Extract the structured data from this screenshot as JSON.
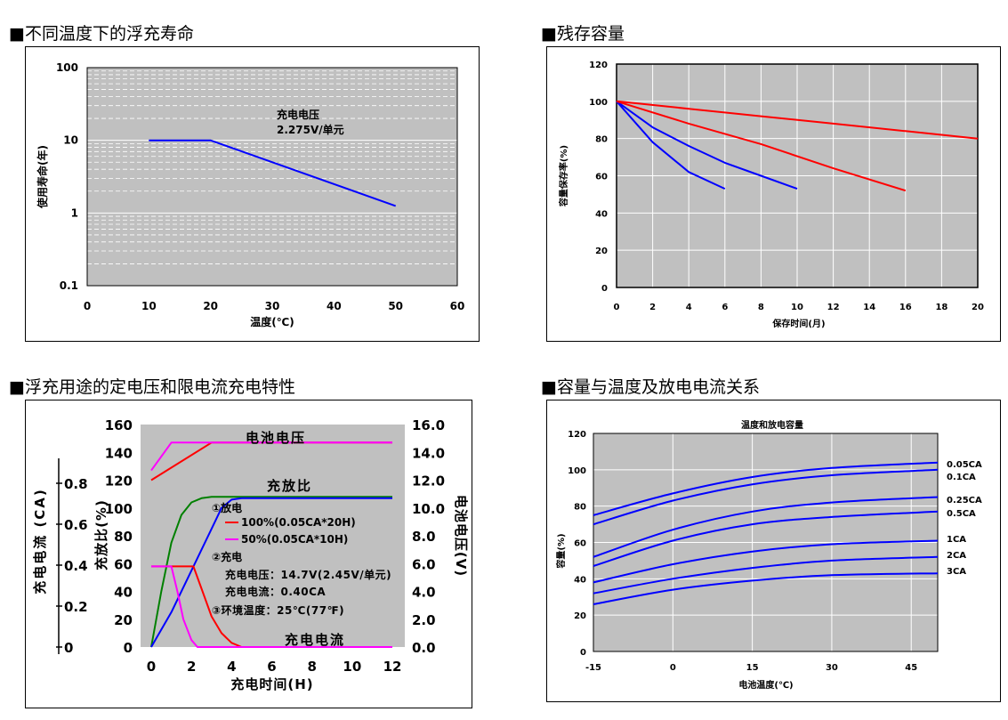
{
  "colors": {
    "plot_bg": "#c0c0c0",
    "grid": "#ffffff",
    "blue": "#0000ff",
    "red": "#ff0000",
    "magenta": "#ff00ff",
    "green": "#008000"
  },
  "sections": {
    "s1_title": "■不同温度下的浮充寿命",
    "s2_title": "■残存容量",
    "s3_title": "■浮充用途的定电压和限电流充电特性",
    "s4_title": "■容量与温度及放电电流关系"
  },
  "chart_data": [
    {
      "type": "line",
      "title": "",
      "xlabel": "温度(℃)",
      "ylabel": "使用寿命(年)",
      "yscale": "log",
      "xlim": [
        0,
        60
      ],
      "ylim": [
        0.1,
        100
      ],
      "xticks": [
        "0",
        "10",
        "20",
        "30",
        "40",
        "50",
        "60"
      ],
      "yticks": [
        "0.1",
        "1",
        "10",
        "100"
      ],
      "annotation": [
        "充电电压",
        "2.275V/单元"
      ],
      "grid": "dashed minor lines",
      "series": [
        {
          "x": [
            10,
            20,
            50
          ],
          "y": [
            10,
            10,
            1.25
          ]
        }
      ]
    },
    {
      "type": "line",
      "title": "",
      "xlabel": "保存时间(月)",
      "ylabel": "容量保存率(%)",
      "xlim": [
        0,
        20
      ],
      "ylim": [
        0,
        120
      ],
      "xticks": [
        "0",
        "2",
        "4",
        "6",
        "8",
        "10",
        "12",
        "14",
        "16",
        "18",
        "20"
      ],
      "yticks": [
        "0",
        "20",
        "40",
        "60",
        "80",
        "100",
        "120"
      ],
      "grid": true,
      "series": [
        {
          "color": "#0000ff",
          "x": [
            0,
            2,
            4,
            6
          ],
          "y": [
            100,
            78,
            62,
            53
          ]
        },
        {
          "color": "#0000ff",
          "x": [
            0,
            2,
            4,
            6,
            8,
            10
          ],
          "y": [
            100,
            86,
            76,
            67,
            60,
            53
          ]
        },
        {
          "color": "#ff0000",
          "x": [
            0,
            4,
            8,
            12,
            16
          ],
          "y": [
            100,
            88,
            77,
            64,
            52
          ]
        },
        {
          "color": "#ff0000",
          "x": [
            0,
            4,
            8,
            12,
            16,
            20
          ],
          "y": [
            100,
            96,
            92,
            88,
            84,
            80
          ]
        }
      ]
    },
    {
      "type": "line",
      "title": "",
      "xlabel": "充电时间(H)",
      "ylabel": "充放比(%)",
      "y2label": "电池电压(V)",
      "y3label": "充电电流 (CA)",
      "xlim": [
        0,
        12
      ],
      "ylim": [
        0,
        160
      ],
      "y2lim": [
        0,
        16
      ],
      "y3lim": [
        0,
        0.8
      ],
      "xticks": [
        "0",
        "2",
        "4",
        "6",
        "8",
        "10",
        "12"
      ],
      "yticks": [
        "0",
        "20",
        "40",
        "60",
        "80",
        "100",
        "120",
        "140",
        "160"
      ],
      "y2ticks": [
        "0.0",
        "2.0",
        "4.0",
        "6.0",
        "8.0",
        "10.0",
        "12.0",
        "14.0",
        "16.0"
      ],
      "y3ticks": [
        "0",
        "0.2",
        "0.4",
        "0.6",
        "0.8"
      ],
      "curve_labels": {
        "voltage": "电池电压",
        "ratio": "充放比",
        "current": "充电电流"
      },
      "legend": {
        "discharge_title": "①放电",
        "item1": "100%(0.05CA*20H)",
        "item2": "50%(0.05CA*10H)",
        "charge_title": "②充电",
        "charge_voltage": "充电电压：14.7V(2.45V/单元)",
        "charge_current": "充电电流：0.40CA",
        "ambient": "③环境温度：25℃(77℉)"
      },
      "series": [
        {
          "name": "100%(0.05CA*20H)",
          "color": "#ff0000",
          "kind": "voltage",
          "x": [
            0,
            3,
            12
          ],
          "y": [
            12.0,
            14.7,
            14.7
          ]
        },
        {
          "name": "50%(0.05CA*10H)",
          "color": "#ff00ff",
          "kind": "voltage",
          "x": [
            0,
            1,
            12
          ],
          "y": [
            12.7,
            14.7,
            14.7
          ]
        },
        {
          "color": "#008000",
          "kind": "ratio",
          "x": [
            0,
            0.5,
            1,
            1.5,
            2,
            2.5,
            3,
            12
          ],
          "y": [
            0,
            40,
            75,
            95,
            104,
            107,
            108,
            108
          ]
        },
        {
          "color": "#0000ff",
          "kind": "ratio",
          "x": [
            0,
            1,
            2,
            3,
            3.5,
            4,
            4.5,
            12
          ],
          "y": [
            0,
            25,
            55,
            85,
            100,
            106,
            107,
            107
          ]
        },
        {
          "color": "#ff0000",
          "kind": "current",
          "x": [
            0,
            2.1,
            2.5,
            3,
            3.5,
            4,
            4.5,
            12
          ],
          "y": [
            58,
            58,
            42,
            22,
            10,
            3,
            0,
            0
          ]
        },
        {
          "color": "#ff00ff",
          "kind": "current",
          "x": [
            0,
            1,
            1.3,
            1.6,
            2,
            2.3,
            12
          ],
          "y": [
            58,
            58,
            40,
            20,
            5,
            0,
            0
          ]
        }
      ]
    },
    {
      "type": "line",
      "title": "温度和放电容量",
      "xlabel": "电池温度(℃)",
      "ylabel": "容量(%)",
      "xlim": [
        -15,
        50
      ],
      "ylim": [
        0,
        120
      ],
      "xticks": [
        "-15",
        "0",
        "15",
        "30",
        "45"
      ],
      "yticks": [
        "0",
        "20",
        "40",
        "60",
        "80",
        "100",
        "120"
      ],
      "grid": true,
      "series": [
        {
          "name": "0.05CA",
          "x": [
            -15,
            0,
            15,
            30,
            50
          ],
          "y": [
            75,
            87,
            96,
            101,
            104
          ]
        },
        {
          "name": "0.1CA",
          "x": [
            -15,
            0,
            15,
            30,
            50
          ],
          "y": [
            70,
            83,
            92,
            97,
            100
          ]
        },
        {
          "name": "0.25CA",
          "x": [
            -15,
            0,
            15,
            30,
            50
          ],
          "y": [
            52,
            67,
            77,
            82,
            85
          ]
        },
        {
          "name": "0.5CA",
          "x": [
            -15,
            0,
            15,
            30,
            50
          ],
          "y": [
            47,
            61,
            70,
            74,
            77
          ]
        },
        {
          "name": "1CA",
          "x": [
            -15,
            0,
            15,
            30,
            50
          ],
          "y": [
            38,
            48,
            55,
            59,
            61
          ]
        },
        {
          "name": "2CA",
          "x": [
            -15,
            0,
            15,
            30,
            50
          ],
          "y": [
            32,
            40,
            46,
            50,
            52
          ]
        },
        {
          "name": "3CA",
          "x": [
            -15,
            0,
            15,
            30,
            50
          ],
          "y": [
            26,
            34,
            39,
            42,
            43
          ]
        }
      ]
    }
  ]
}
